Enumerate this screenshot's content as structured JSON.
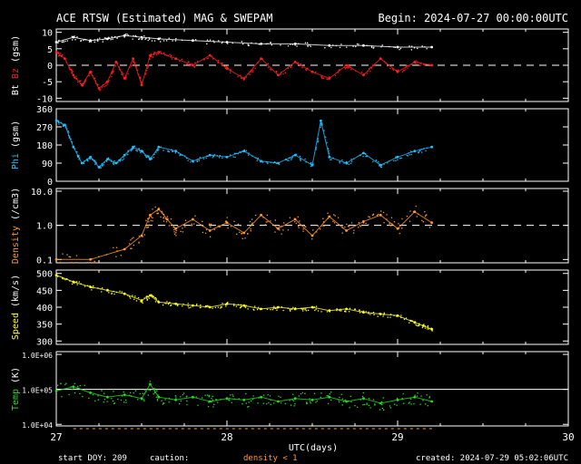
{
  "header": {
    "title": "ACE RTSW (Estimated) MAG & SWEPAM",
    "begin": "Begin: 2024-07-27 00:00:00UTC"
  },
  "footer": {
    "start_doy": "start DOY: 209",
    "caution": "caution:",
    "density_note": "density < 1",
    "created": "created: 2024-07-29 05:02:06UTC"
  },
  "colors": {
    "bt": "#ffffff",
    "bz": "#ff2020",
    "phi": "#20c0ff",
    "density": "#ff9a30",
    "speed": "#ffff20",
    "temp": "#20e020",
    "frame": "#ffffff",
    "bg": "#000000"
  },
  "chart_data": {
    "type": "scatter",
    "x_label": "UTC(days)",
    "x_range": [
      27,
      30
    ],
    "x_ticks": [
      "27",
      "28",
      "29",
      "30"
    ],
    "data_end_day": 29.2,
    "panels": [
      {
        "id": "mag",
        "ylabel_parts": [
          "Bt",
          "Bz",
          "(gsm)"
        ],
        "ylabel_colors": [
          "#ffffff",
          "#ff2020",
          "#ffffff"
        ],
        "scale": "linear",
        "ylim": [
          -11,
          11
        ],
        "y_ticks": [
          {
            "v": 10,
            "l": "10"
          },
          {
            "v": 5,
            "l": "5"
          },
          {
            "v": 0,
            "l": "0"
          },
          {
            "v": -5,
            "l": "-5"
          },
          {
            "v": -10,
            "l": "-10"
          }
        ],
        "ref_line": 0,
        "ref_style": "dashed",
        "series": [
          {
            "name": "Bt",
            "color": "#ffffff",
            "points": [
              [
                27.0,
                7
              ],
              [
                27.1,
                8.5
              ],
              [
                27.2,
                7.5
              ],
              [
                27.3,
                8
              ],
              [
                27.4,
                9
              ],
              [
                27.5,
                8.5
              ],
              [
                27.6,
                8
              ],
              [
                27.8,
                7.5
              ],
              [
                28.0,
                7
              ],
              [
                28.2,
                6.5
              ],
              [
                28.4,
                6.5
              ],
              [
                28.6,
                6
              ],
              [
                28.8,
                6
              ],
              [
                29.0,
                5.5
              ],
              [
                29.2,
                5.5
              ]
            ]
          },
          {
            "name": "Bz",
            "color": "#ff2020",
            "points": [
              [
                27.0,
                4
              ],
              [
                27.05,
                2
              ],
              [
                27.1,
                -3
              ],
              [
                27.15,
                -6
              ],
              [
                27.2,
                -2
              ],
              [
                27.25,
                -7
              ],
              [
                27.3,
                -5
              ],
              [
                27.35,
                1
              ],
              [
                27.4,
                -4
              ],
              [
                27.45,
                2
              ],
              [
                27.5,
                -6
              ],
              [
                27.55,
                3
              ],
              [
                27.6,
                4
              ],
              [
                27.7,
                2
              ],
              [
                27.8,
                0
              ],
              [
                27.9,
                3
              ],
              [
                28.0,
                -1
              ],
              [
                28.1,
                -4
              ],
              [
                28.2,
                2
              ],
              [
                28.3,
                -3
              ],
              [
                28.4,
                1
              ],
              [
                28.5,
                -2
              ],
              [
                28.6,
                -4
              ],
              [
                28.7,
                0
              ],
              [
                28.8,
                -3
              ],
              [
                28.9,
                2
              ],
              [
                29.0,
                -2
              ],
              [
                29.1,
                1
              ],
              [
                29.2,
                0
              ]
            ]
          }
        ]
      },
      {
        "id": "phi",
        "ylabel_parts": [
          "Phi",
          "(gsm)"
        ],
        "ylabel_colors": [
          "#20c0ff",
          "#ffffff"
        ],
        "scale": "linear",
        "ylim": [
          0,
          360
        ],
        "y_ticks": [
          {
            "v": 360,
            "l": "360"
          },
          {
            "v": 270,
            "l": "270"
          },
          {
            "v": 180,
            "l": "180"
          },
          {
            "v": 90,
            "l": "90"
          },
          {
            "v": 0,
            "l": "0"
          }
        ],
        "series": [
          {
            "name": "Phi",
            "color": "#20c0ff",
            "points": [
              [
                27.0,
                300
              ],
              [
                27.05,
                280
              ],
              [
                27.1,
                170
              ],
              [
                27.15,
                90
              ],
              [
                27.2,
                120
              ],
              [
                27.25,
                70
              ],
              [
                27.3,
                110
              ],
              [
                27.35,
                90
              ],
              [
                27.4,
                130
              ],
              [
                27.45,
                170
              ],
              [
                27.5,
                150
              ],
              [
                27.55,
                110
              ],
              [
                27.6,
                170
              ],
              [
                27.7,
                150
              ],
              [
                27.8,
                100
              ],
              [
                27.9,
                130
              ],
              [
                28.0,
                120
              ],
              [
                28.1,
                150
              ],
              [
                28.2,
                100
              ],
              [
                28.3,
                90
              ],
              [
                28.4,
                130
              ],
              [
                28.5,
                80
              ],
              [
                28.55,
                300
              ],
              [
                28.6,
                120
              ],
              [
                28.7,
                90
              ],
              [
                28.8,
                140
              ],
              [
                28.9,
                80
              ],
              [
                29.0,
                120
              ],
              [
                29.1,
                150
              ],
              [
                29.2,
                170
              ]
            ]
          }
        ]
      },
      {
        "id": "density",
        "ylabel_parts": [
          "Density",
          "(/cm3)"
        ],
        "ylabel_colors": [
          "#ff9a30",
          "#ffffff"
        ],
        "scale": "log",
        "ylim": [
          0.08,
          12
        ],
        "y_ticks": [
          {
            "v": 10,
            "l": "10.0"
          },
          {
            "v": 1,
            "l": "1.0"
          },
          {
            "v": 0.1,
            "l": "0.1"
          }
        ],
        "ref_line": 1,
        "ref_style": "dashed",
        "series": [
          {
            "name": "Density",
            "color": "#ff9a30",
            "points": [
              [
                27.0,
                0.1
              ],
              [
                27.2,
                0.1
              ],
              [
                27.4,
                0.2
              ],
              [
                27.5,
                0.5
              ],
              [
                27.55,
                2
              ],
              [
                27.6,
                3
              ],
              [
                27.65,
                1.5
              ],
              [
                27.7,
                0.8
              ],
              [
                27.8,
                1.5
              ],
              [
                27.9,
                0.7
              ],
              [
                28.0,
                1.2
              ],
              [
                28.1,
                0.6
              ],
              [
                28.2,
                2
              ],
              [
                28.3,
                0.8
              ],
              [
                28.4,
                1.5
              ],
              [
                28.5,
                0.5
              ],
              [
                28.6,
                1.8
              ],
              [
                28.7,
                0.7
              ],
              [
                28.8,
                1.3
              ],
              [
                28.9,
                2
              ],
              [
                29.0,
                0.8
              ],
              [
                29.1,
                2.5
              ],
              [
                29.2,
                1.2
              ]
            ]
          }
        ]
      },
      {
        "id": "speed",
        "ylabel_parts": [
          "Speed",
          "(km/s)"
        ],
        "ylabel_colors": [
          "#ffff20",
          "#ffffff"
        ],
        "scale": "linear",
        "ylim": [
          290,
          510
        ],
        "y_ticks": [
          {
            "v": 500,
            "l": "500"
          },
          {
            "v": 450,
            "l": "450"
          },
          {
            "v": 400,
            "l": "400"
          },
          {
            "v": 350,
            "l": "350"
          },
          {
            "v": 300,
            "l": "300"
          }
        ],
        "series": [
          {
            "name": "Speed",
            "color": "#ffff20",
            "points": [
              [
                27.0,
                495
              ],
              [
                27.1,
                475
              ],
              [
                27.2,
                460
              ],
              [
                27.3,
                450
              ],
              [
                27.4,
                440
              ],
              [
                27.5,
                420
              ],
              [
                27.55,
                435
              ],
              [
                27.6,
                415
              ],
              [
                27.7,
                410
              ],
              [
                27.8,
                405
              ],
              [
                27.9,
                400
              ],
              [
                28.0,
                410
              ],
              [
                28.1,
                405
              ],
              [
                28.2,
                395
              ],
              [
                28.3,
                400
              ],
              [
                28.4,
                395
              ],
              [
                28.5,
                400
              ],
              [
                28.6,
                390
              ],
              [
                28.7,
                395
              ],
              [
                28.8,
                385
              ],
              [
                28.9,
                380
              ],
              [
                29.0,
                375
              ],
              [
                29.1,
                355
              ],
              [
                29.15,
                345
              ],
              [
                29.2,
                335
              ]
            ]
          }
        ]
      },
      {
        "id": "temp",
        "ylabel_parts": [
          "Temp",
          "(K)"
        ],
        "ylabel_colors": [
          "#20e020",
          "#ffffff"
        ],
        "scale": "log",
        "ylim": [
          9000,
          1200000
        ],
        "y_ticks": [
          {
            "v": 1000000,
            "l": "1.0E+06"
          },
          {
            "v": 100000,
            "l": "1.0E+05"
          },
          {
            "v": 10000,
            "l": "1.0E+04"
          }
        ],
        "ref_line": 100000,
        "ref_style": "solid",
        "series": [
          {
            "name": "Temp",
            "color": "#20e020",
            "points": [
              [
                27.0,
                90000
              ],
              [
                27.1,
                120000
              ],
              [
                27.2,
                80000
              ],
              [
                27.3,
                60000
              ],
              [
                27.4,
                70000
              ],
              [
                27.5,
                55000
              ],
              [
                27.55,
                140000
              ],
              [
                27.6,
                60000
              ],
              [
                27.7,
                50000
              ],
              [
                27.8,
                60000
              ],
              [
                27.9,
                45000
              ],
              [
                28.0,
                55000
              ],
              [
                28.1,
                50000
              ],
              [
                28.2,
                60000
              ],
              [
                28.3,
                45000
              ],
              [
                28.4,
                55000
              ],
              [
                28.5,
                50000
              ],
              [
                28.6,
                60000
              ],
              [
                28.7,
                45000
              ],
              [
                28.8,
                55000
              ],
              [
                28.9,
                40000
              ],
              [
                29.0,
                50000
              ],
              [
                29.1,
                60000
              ],
              [
                29.2,
                45000
              ]
            ]
          }
        ]
      }
    ]
  }
}
